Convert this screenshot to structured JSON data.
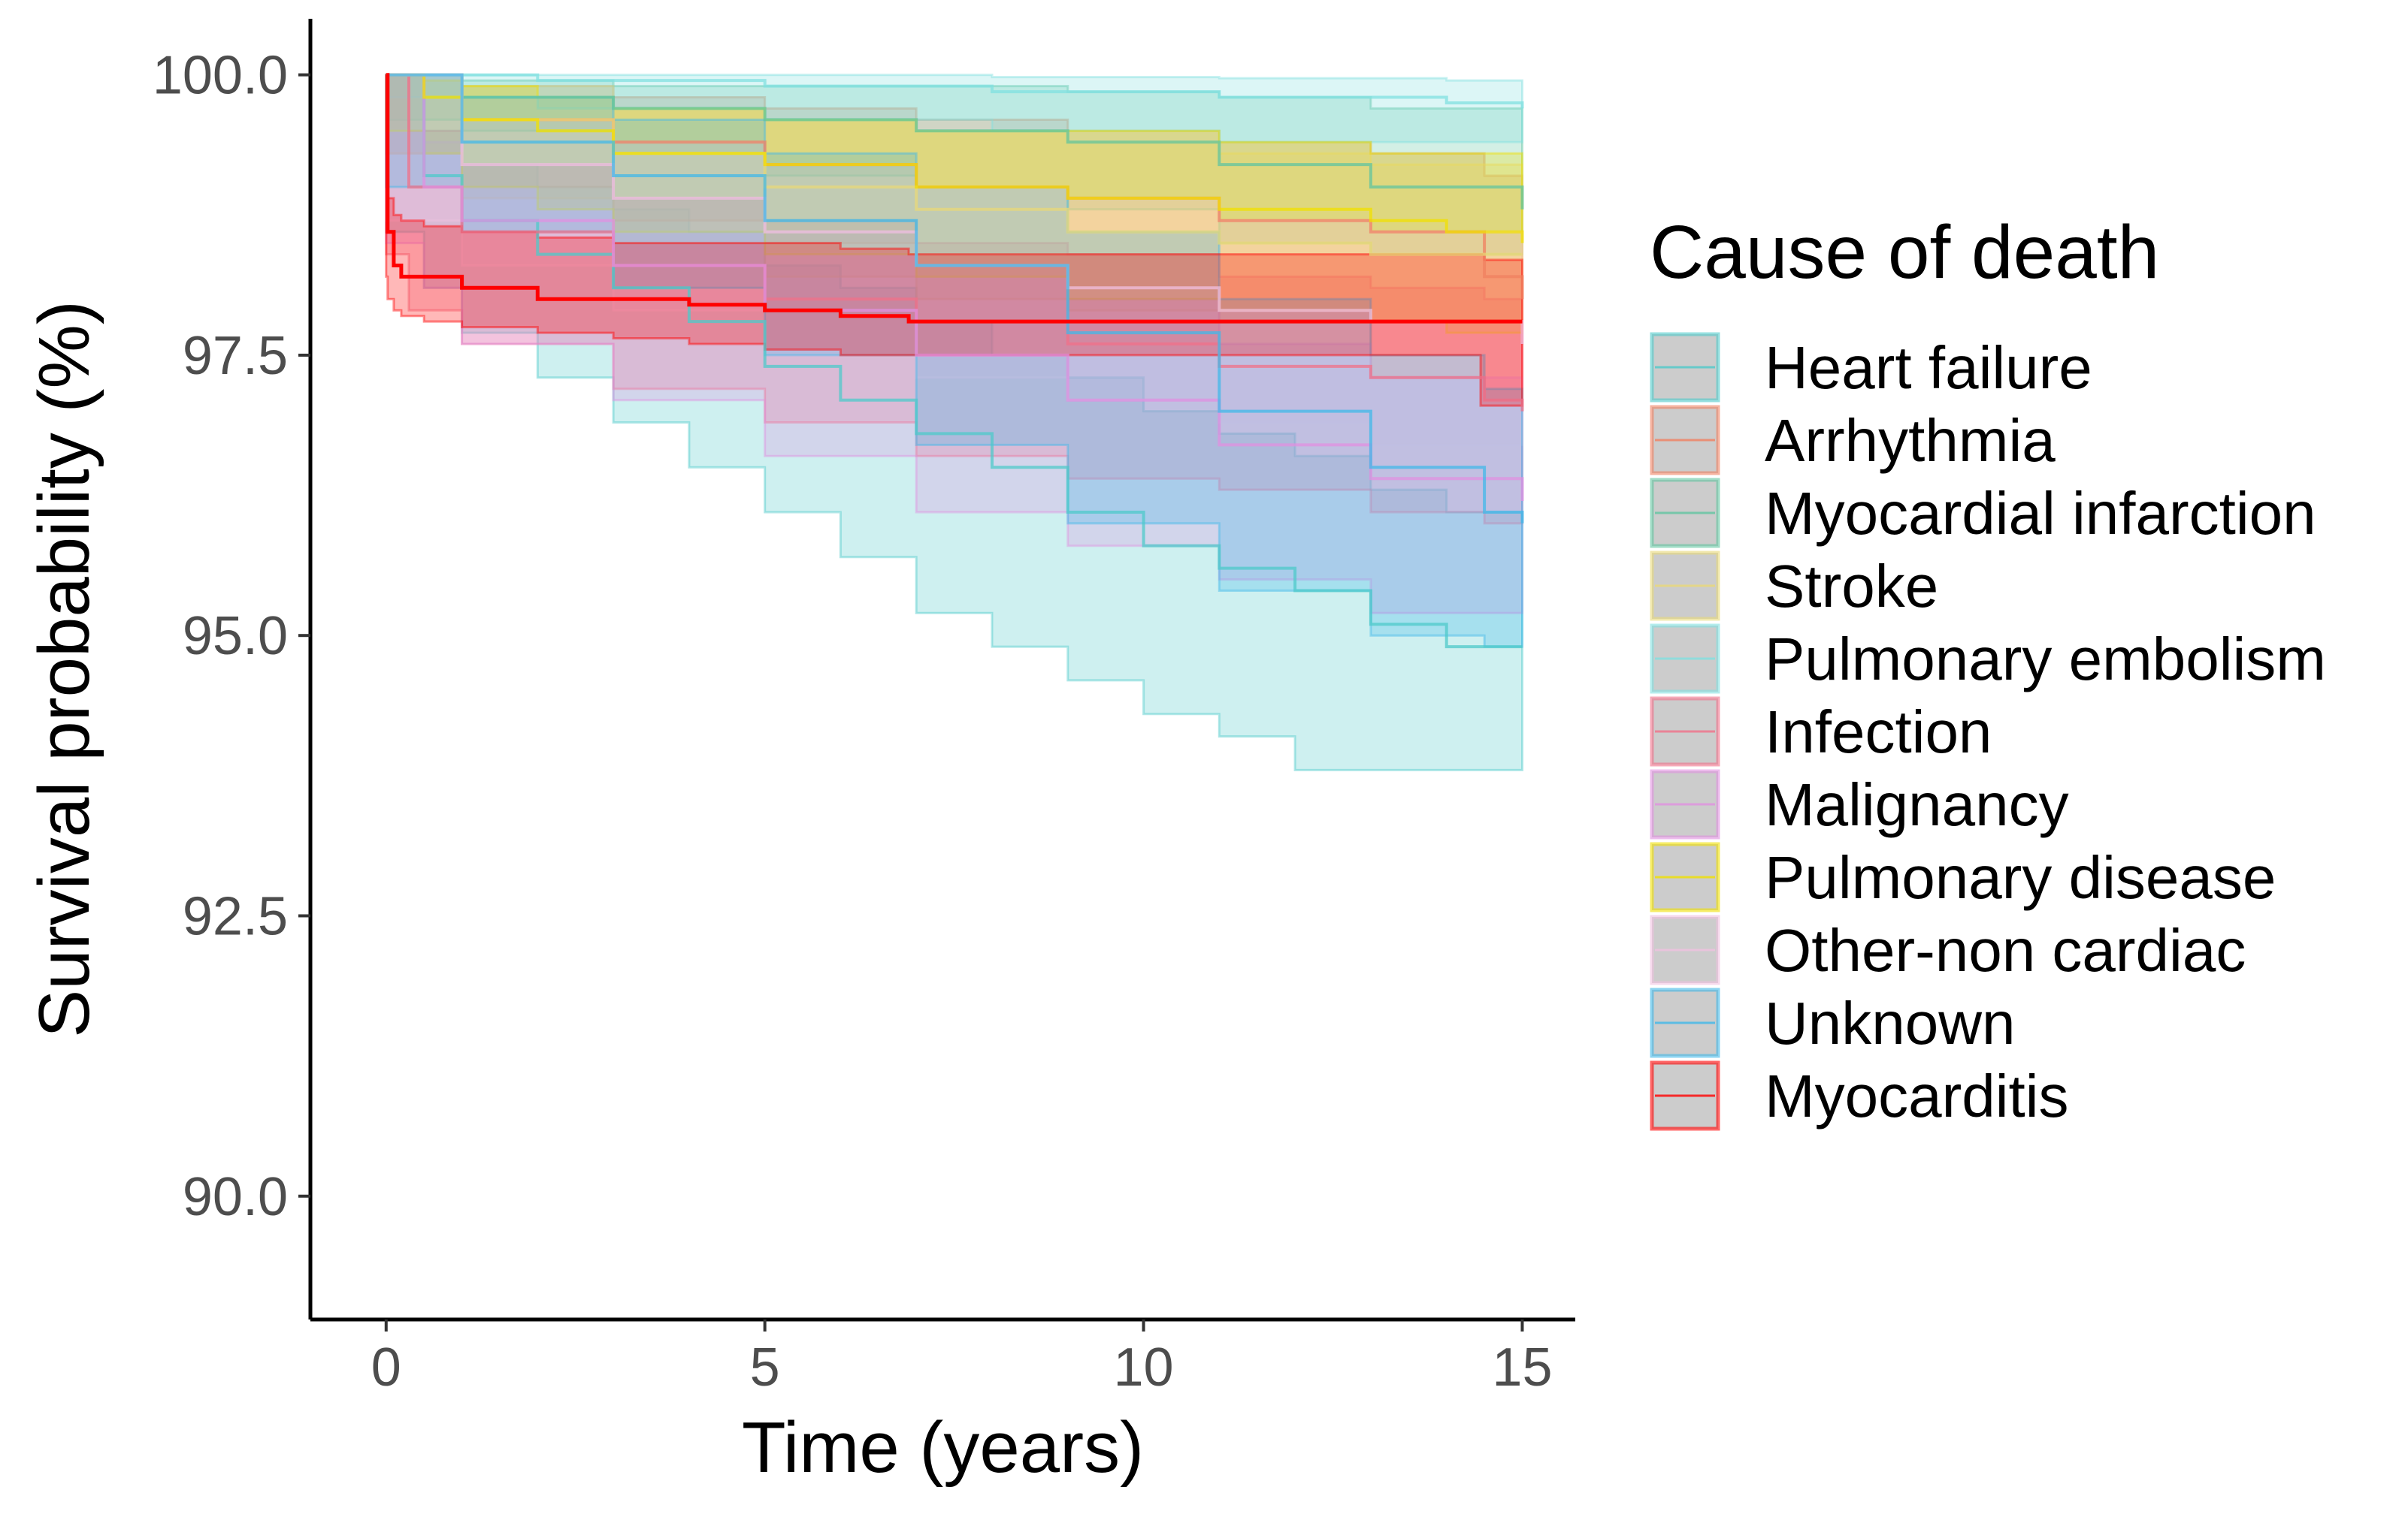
{
  "chart_data": {
    "type": "line",
    "subtype": "kaplan-meier-survival-with-confidence-bands",
    "title": "",
    "xlabel": "Time (years)",
    "ylabel": "Survival probability (%)",
    "xlim": [
      -1,
      15.7
    ],
    "ylim": [
      88.9,
      100.5
    ],
    "xticks": [
      0,
      5,
      10,
      15
    ],
    "xtick_labels": [
      "0",
      "5",
      "10",
      "15"
    ],
    "yticks": [
      90.0,
      92.5,
      95.0,
      97.5,
      100.0
    ],
    "ytick_labels": [
      "90.0",
      "92.5",
      "95.0",
      "97.5",
      "100.0"
    ],
    "grid": false,
    "legend": {
      "title": "Cause of death",
      "position": "right"
    },
    "series": [
      {
        "name": "Heart failure",
        "color": "#4ec9c9",
        "x": [
          0,
          0.5,
          1,
          2,
          3,
          4,
          5,
          6,
          7,
          8,
          9,
          10,
          11,
          12,
          13,
          14,
          15
        ],
        "y": [
          100,
          99.1,
          98.7,
          98.4,
          98.1,
          97.8,
          97.4,
          97.1,
          96.8,
          96.5,
          96.1,
          95.8,
          95.6,
          95.4,
          95.1,
          94.9,
          94.9
        ],
        "lower": [
          100,
          98.6,
          98.1,
          97.7,
          97.3,
          96.9,
          96.5,
          96.1,
          95.7,
          95.2,
          94.9,
          94.6,
          94.3,
          94.1,
          93.8,
          93.8,
          93.8
        ],
        "upper": [
          100,
          99.5,
          99.2,
          99.0,
          98.8,
          98.6,
          98.3,
          98.1,
          97.8,
          97.5,
          97.3,
          97.0,
          96.8,
          96.6,
          96.3,
          96.1,
          96.0
        ]
      },
      {
        "name": "Arrhythmia",
        "color": "#f08060",
        "x": [
          0,
          1,
          3,
          5,
          7,
          9,
          11,
          13,
          14.5,
          15
        ],
        "y": [
          100,
          99.6,
          99.4,
          99.2,
          99.0,
          98.9,
          98.7,
          98.6,
          98.2,
          98.0
        ],
        "lower": [
          100,
          99.3,
          99.0,
          98.7,
          98.5,
          98.3,
          98.1,
          97.9,
          97.3,
          97.1
        ],
        "upper": [
          100,
          99.9,
          99.8,
          99.7,
          99.6,
          99.5,
          99.4,
          99.3,
          99.1,
          99.0
        ]
      },
      {
        "name": "Myocardial infarction",
        "color": "#60c4a0",
        "x": [
          0,
          1,
          3,
          5,
          7,
          9,
          11,
          13,
          15
        ],
        "y": [
          100,
          99.8,
          99.7,
          99.6,
          99.5,
          99.4,
          99.2,
          99.0,
          98.8
        ],
        "lower": [
          100,
          99.6,
          99.5,
          99.3,
          99.1,
          99.0,
          98.8,
          98.5,
          98.4
        ],
        "upper": [
          100,
          99.95,
          99.9,
          99.9,
          99.9,
          99.85,
          99.8,
          99.7,
          99.6
        ]
      },
      {
        "name": "Stroke",
        "color": "#e8d878",
        "x": [
          0,
          1,
          3,
          5,
          7,
          9,
          11,
          13,
          15
        ],
        "y": [
          100,
          99.6,
          99.3,
          99.0,
          98.8,
          98.6,
          98.5,
          98.4,
          98.4
        ],
        "lower": [
          100,
          99.3,
          98.9,
          98.5,
          98.2,
          98.0,
          97.9,
          97.8,
          97.8
        ],
        "upper": [
          100,
          99.9,
          99.7,
          99.6,
          99.5,
          99.4,
          99.3,
          99.2,
          99.2
        ]
      },
      {
        "name": "Pulmonary embolism",
        "color": "#80e0e0",
        "x": [
          0,
          2,
          5,
          8,
          11,
          14,
          15
        ],
        "y": [
          100,
          99.95,
          99.9,
          99.85,
          99.8,
          99.75,
          99.7
        ],
        "lower": [
          100,
          99.8,
          99.7,
          99.6,
          99.5,
          99.4,
          99.4
        ],
        "upper": [
          100,
          100,
          100,
          99.98,
          99.97,
          99.95,
          99.95
        ]
      },
      {
        "name": "Infection",
        "color": "#f07088",
        "x": [
          0,
          0.3,
          1,
          3,
          5,
          7,
          9,
          11,
          13,
          14.5,
          15
        ],
        "y": [
          100,
          99.0,
          98.6,
          98.3,
          98.0,
          97.8,
          97.6,
          97.4,
          97.3,
          97.1,
          97.0
        ],
        "lower": [
          100,
          98.4,
          97.9,
          97.6,
          97.2,
          96.9,
          96.6,
          96.4,
          96.3,
          96.1,
          96.0
        ],
        "upper": [
          100,
          99.5,
          99.2,
          98.9,
          98.7,
          98.5,
          98.4,
          98.2,
          98.1,
          98.0,
          97.9
        ]
      },
      {
        "name": "Malignancy",
        "color": "#e090e0",
        "x": [
          0,
          0.5,
          1,
          3,
          5,
          7,
          9,
          11,
          13,
          15
        ],
        "y": [
          100,
          99.0,
          98.7,
          98.3,
          97.9,
          97.5,
          97.1,
          96.7,
          96.4,
          96.2
        ],
        "lower": [
          100,
          98.5,
          98.1,
          97.6,
          97.1,
          96.6,
          96.1,
          95.8,
          95.5,
          95.2
        ],
        "upper": [
          100,
          99.4,
          99.2,
          98.9,
          98.6,
          98.3,
          98.0,
          97.6,
          97.3,
          97.1
        ]
      },
      {
        "name": "Pulmonary disease",
        "color": "#f0e000",
        "x": [
          0,
          0.5,
          1,
          2,
          3,
          5,
          7,
          9,
          11,
          13,
          14,
          15
        ],
        "y": [
          100,
          99.8,
          99.6,
          99.5,
          99.3,
          99.2,
          99.0,
          98.9,
          98.8,
          98.7,
          98.6,
          98.5
        ],
        "lower": [
          100,
          99.5,
          99.3,
          99.0,
          98.8,
          98.6,
          98.4,
          98.2,
          98.0,
          97.9,
          97.8,
          97.7
        ],
        "upper": [
          100,
          99.95,
          99.9,
          99.8,
          99.7,
          99.6,
          99.5,
          99.5,
          99.4,
          99.3,
          99.3,
          99.2
        ]
      },
      {
        "name": "Other-non cardiac",
        "color": "#f0c0e0",
        "x": [
          0,
          1,
          3,
          5,
          7,
          9,
          11,
          13,
          15
        ],
        "y": [
          100,
          99.2,
          98.9,
          98.6,
          98.3,
          98.1,
          97.9,
          97.8,
          97.6
        ],
        "lower": [
          100,
          98.7,
          98.3,
          97.9,
          97.5,
          97.3,
          97.1,
          96.9,
          96.7
        ],
        "upper": [
          100,
          99.6,
          99.4,
          99.2,
          99.0,
          98.9,
          98.7,
          98.6,
          98.5
        ]
      },
      {
        "name": "Unknown",
        "color": "#40b8e8",
        "x": [
          0,
          1,
          3,
          5,
          7,
          9,
          11,
          13,
          14.5,
          15
        ],
        "y": [
          100,
          99.4,
          99.1,
          98.7,
          98.3,
          97.7,
          97.0,
          96.5,
          96.1,
          96.0
        ],
        "lower": [
          100,
          99.0,
          98.6,
          98.1,
          97.5,
          96.7,
          96.0,
          95.4,
          95.0,
          94.9
        ],
        "upper": [
          100,
          99.8,
          99.6,
          99.3,
          99.0,
          98.6,
          98.0,
          97.5,
          97.2,
          97.1
        ]
      },
      {
        "name": "Myocarditis",
        "color": "#ff0000",
        "x": [
          0,
          0.02,
          0.1,
          0.2,
          0.5,
          1,
          2,
          3,
          4,
          5,
          6,
          6.9,
          7,
          8,
          9,
          10,
          11,
          12,
          13,
          14,
          14.45,
          14.5,
          15
        ],
        "y": [
          100,
          98.6,
          98.3,
          98.2,
          98.2,
          98.1,
          98.0,
          98.0,
          97.95,
          97.9,
          97.85,
          97.8,
          97.8,
          97.8,
          97.8,
          97.8,
          97.8,
          97.8,
          97.8,
          97.8,
          97.8,
          97.8,
          97.8
        ],
        "lower": [
          100,
          98.2,
          98.0,
          97.9,
          97.85,
          97.8,
          97.75,
          97.7,
          97.65,
          97.6,
          97.55,
          97.5,
          97.5,
          97.5,
          97.5,
          97.5,
          97.5,
          97.5,
          97.5,
          97.5,
          97.5,
          97.05,
          97.05
        ],
        "upper": [
          100,
          98.9,
          98.75,
          98.7,
          98.65,
          98.6,
          98.55,
          98.5,
          98.5,
          98.5,
          98.45,
          98.4,
          98.4,
          98.4,
          98.4,
          98.4,
          98.4,
          98.4,
          98.4,
          98.4,
          98.4,
          98.35,
          98.35
        ]
      }
    ]
  }
}
